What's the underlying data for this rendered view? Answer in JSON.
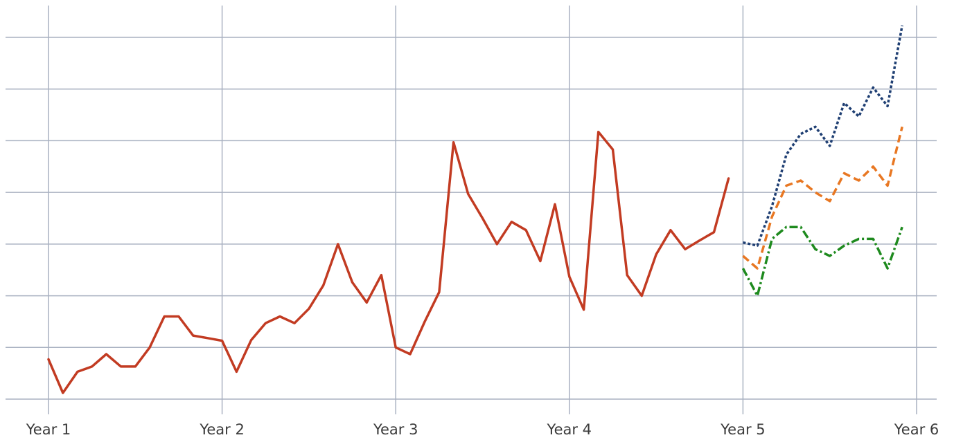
{
  "chart_data": {
    "type": "line",
    "title": "",
    "xlabel": "",
    "ylabel": "",
    "x_ticks": [
      "Year 1",
      "Year 2",
      "Year 3",
      "Year 4",
      "Year 5",
      "Year 6"
    ],
    "xlim": [
      1,
      6
    ],
    "ylim": [
      0,
      7
    ],
    "y_gridlines": [
      0,
      1,
      2,
      3,
      4,
      5,
      6,
      7
    ],
    "y_tick_labels_visible": false,
    "grid": true,
    "legend": "none",
    "series": [
      {
        "color": "#c23b22",
        "style": "solid",
        "x": [
          1.0,
          1.083,
          1.167,
          1.25,
          1.333,
          1.417,
          1.5,
          1.583,
          1.667,
          1.75,
          1.833,
          1.917,
          2.0,
          2.083,
          2.167,
          2.25,
          2.333,
          2.417,
          2.5,
          2.583,
          2.667,
          2.75,
          2.833,
          2.917,
          3.0,
          3.083,
          3.167,
          3.25,
          3.333,
          3.417,
          3.5,
          3.583,
          3.667,
          3.75,
          3.833,
          3.917,
          4.0,
          4.083,
          4.167,
          4.25,
          4.333,
          4.417,
          4.5,
          4.583,
          4.667,
          4.75,
          4.833,
          4.917
        ],
        "values": [
          0.77,
          0.12,
          0.53,
          0.63,
          0.87,
          0.63,
          0.63,
          1.0,
          1.6,
          1.6,
          1.23,
          1.18,
          1.13,
          0.53,
          1.14,
          1.47,
          1.6,
          1.47,
          1.75,
          2.2,
          3.0,
          2.26,
          1.87,
          2.4,
          1.0,
          0.87,
          1.5,
          2.07,
          4.97,
          3.97,
          3.5,
          3.0,
          3.43,
          3.27,
          2.67,
          3.77,
          2.37,
          1.73,
          5.17,
          4.83,
          2.4,
          2.0,
          2.8,
          3.27,
          2.9,
          3.07,
          3.23,
          4.27
        ]
      },
      {
        "color": "#1f3f73",
        "style": "dotted",
        "x": [
          5.0,
          5.083,
          5.167,
          5.25,
          5.333,
          5.417,
          5.5,
          5.583,
          5.667,
          5.75,
          5.833,
          5.917
        ],
        "values": [
          3.03,
          2.97,
          3.73,
          4.73,
          5.13,
          5.27,
          4.9,
          5.73,
          5.47,
          6.03,
          5.67,
          7.23
        ]
      },
      {
        "color": "#e87722",
        "style": "dashed",
        "x": [
          5.0,
          5.083,
          5.167,
          5.25,
          5.333,
          5.417,
          5.5,
          5.583,
          5.667,
          5.75,
          5.833,
          5.917
        ],
        "values": [
          2.77,
          2.53,
          3.53,
          4.13,
          4.23,
          4.0,
          3.83,
          4.37,
          4.23,
          4.5,
          4.13,
          5.27
        ]
      },
      {
        "color": "#1e8a1e",
        "style": "dashdot",
        "x": [
          5.0,
          5.083,
          5.167,
          5.25,
          5.333,
          5.417,
          5.5,
          5.583,
          5.667,
          5.75,
          5.833,
          5.917
        ],
        "values": [
          2.53,
          2.0,
          3.1,
          3.33,
          3.33,
          2.9,
          2.77,
          2.97,
          3.1,
          3.1,
          2.53,
          3.33
        ]
      }
    ]
  }
}
